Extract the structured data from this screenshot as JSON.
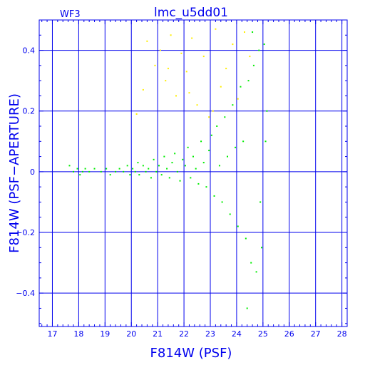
{
  "chart_data": {
    "type": "scatter",
    "title": "lmc_u5dd01",
    "corner_label": "WF3",
    "xlabel": "F814W (PSF)",
    "ylabel": "F814W (PSF−APERTURE)",
    "xlim": [
      16.5,
      28.2
    ],
    "ylim": [
      -0.51,
      0.5
    ],
    "x_ticks": [
      17,
      18,
      19,
      20,
      21,
      22,
      23,
      24,
      25,
      26,
      27,
      28
    ],
    "y_ticks": [
      -0.4,
      -0.2,
      0,
      0.2,
      0.4
    ],
    "y_tick_labels": [
      "−0.4",
      "−0.2",
      "0",
      "0.2",
      "0.4"
    ],
    "grid": true,
    "series_colors": [
      "#00ee00",
      "#ffee00"
    ],
    "series": [
      {
        "color": "#00ee00",
        "points": [
          [
            17.65,
            0.02
          ],
          [
            17.8,
            0.0
          ],
          [
            17.95,
            0.01
          ],
          [
            18.05,
            -0.01
          ],
          [
            18.15,
            0.0
          ],
          [
            18.25,
            0.01
          ],
          [
            18.4,
            0.0
          ],
          [
            18.6,
            0.01
          ],
          [
            18.85,
            0.0
          ],
          [
            19.05,
            0.01
          ],
          [
            19.2,
            -0.01
          ],
          [
            19.4,
            0.0
          ],
          [
            19.55,
            0.01
          ],
          [
            19.7,
            0.0
          ],
          [
            19.85,
            0.02
          ],
          [
            19.95,
            -0.01
          ],
          [
            20.05,
            0.01
          ],
          [
            20.15,
            0.0
          ],
          [
            20.25,
            0.03
          ],
          [
            20.3,
            -0.01
          ],
          [
            20.45,
            0.02
          ],
          [
            20.55,
            0.0
          ],
          [
            20.65,
            0.01
          ],
          [
            20.75,
            -0.02
          ],
          [
            20.85,
            0.04
          ],
          [
            20.95,
            0.0
          ],
          [
            21.05,
            0.02
          ],
          [
            21.15,
            -0.01
          ],
          [
            21.25,
            0.05
          ],
          [
            21.35,
            0.01
          ],
          [
            21.45,
            -0.02
          ],
          [
            21.55,
            0.03
          ],
          [
            21.65,
            0.06
          ],
          [
            21.75,
            0.0
          ],
          [
            21.85,
            -0.03
          ],
          [
            21.95,
            0.04
          ],
          [
            22.05,
            0.02
          ],
          [
            22.15,
            0.08
          ],
          [
            22.25,
            -0.02
          ],
          [
            22.35,
            0.05
          ],
          [
            22.45,
            0.01
          ],
          [
            22.55,
            -0.04
          ],
          [
            22.65,
            0.1
          ],
          [
            22.75,
            0.03
          ],
          [
            22.85,
            -0.05
          ],
          [
            22.95,
            0.07
          ],
          [
            23.05,
            0.12
          ],
          [
            23.15,
            -0.08
          ],
          [
            23.25,
            0.15
          ],
          [
            23.35,
            0.02
          ],
          [
            23.45,
            -0.1
          ],
          [
            23.55,
            0.18
          ],
          [
            23.65,
            0.05
          ],
          [
            23.75,
            -0.14
          ],
          [
            23.85,
            0.22
          ],
          [
            23.95,
            0.08
          ],
          [
            24.05,
            -0.18
          ],
          [
            24.15,
            0.28
          ],
          [
            24.25,
            0.1
          ],
          [
            24.35,
            -0.22
          ],
          [
            24.45,
            0.3
          ],
          [
            24.55,
            -0.3
          ],
          [
            24.65,
            0.35
          ],
          [
            24.75,
            -0.33
          ],
          [
            24.85,
            0.4
          ],
          [
            24.95,
            -0.25
          ],
          [
            25.05,
            0.42
          ],
          [
            25.15,
            0.2
          ],
          [
            24.4,
            -0.45
          ],
          [
            24.6,
            0.46
          ],
          [
            24.9,
            -0.1
          ],
          [
            25.1,
            0.1
          ]
        ]
      },
      {
        "color": "#ffee00",
        "points": [
          [
            20.2,
            0.19
          ],
          [
            20.45,
            0.27
          ],
          [
            20.6,
            0.43
          ],
          [
            20.9,
            0.35
          ],
          [
            21.1,
            0.4
          ],
          [
            21.3,
            0.3
          ],
          [
            21.5,
            0.45
          ],
          [
            21.7,
            0.25
          ],
          [
            21.9,
            0.39
          ],
          [
            22.1,
            0.33
          ],
          [
            22.3,
            0.44
          ],
          [
            22.5,
            0.22
          ],
          [
            22.75,
            0.38
          ],
          [
            22.95,
            0.18
          ],
          [
            23.2,
            0.47
          ],
          [
            23.4,
            0.28
          ],
          [
            23.6,
            0.34
          ],
          [
            23.85,
            0.42
          ],
          [
            24.05,
            0.24
          ],
          [
            24.3,
            0.46
          ],
          [
            24.5,
            0.38
          ],
          [
            22.2,
            0.26
          ],
          [
            21.4,
            0.34
          ],
          [
            23.1,
            0.2
          ]
        ]
      }
    ]
  }
}
